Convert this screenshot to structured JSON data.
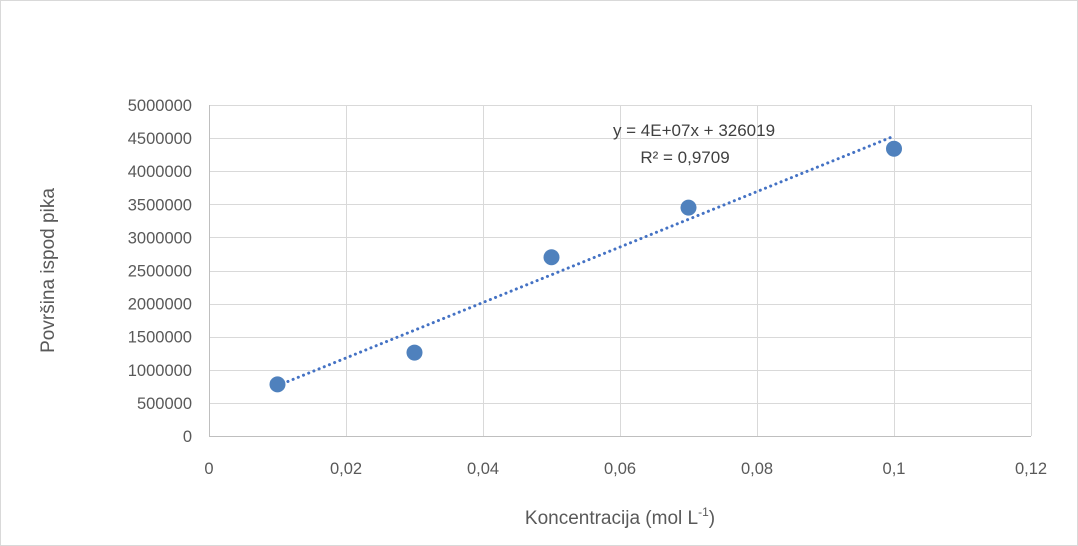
{
  "chart_data": {
    "type": "scatter",
    "title": "",
    "xlabel": "Koncentracija (mol L",
    "xlabel_superscript": "-1",
    "xlabel_suffix": ")",
    "ylabel": "Površina ispod pika",
    "xlim": [
      0,
      0.12
    ],
    "ylim": [
      0,
      5000000
    ],
    "x_ticks": [
      0,
      0.02,
      0.04,
      0.06,
      0.08,
      0.1,
      0.12
    ],
    "x_tick_labels": [
      "0",
      "0,02",
      "0,04",
      "0,06",
      "0,08",
      "0,1",
      "0,12"
    ],
    "y_ticks": [
      0,
      500000,
      1000000,
      1500000,
      2000000,
      2500000,
      3000000,
      3500000,
      4000000,
      4500000,
      5000000
    ],
    "y_tick_labels": [
      "0",
      "500000",
      "1000000",
      "1500000",
      "2000000",
      "2500000",
      "3000000",
      "3500000",
      "4000000",
      "4500000",
      "5000000"
    ],
    "grid": true,
    "legend": "none",
    "series": [
      {
        "color": "#4f81bd",
        "x": [
          0.01,
          0.03,
          0.05,
          0.07,
          0.1
        ],
        "y": [
          780000,
          1260000,
          2700000,
          3450000,
          4340000
        ]
      }
    ],
    "trendline": {
      "type": "linear",
      "style": "dotted",
      "color": "#4472c4",
      "x_range": [
        0.01,
        0.1
      ],
      "y_range": [
        760000,
        4530000
      ],
      "equation": "y = 4E+07x + 326019",
      "r_squared": "R² = 0,9709"
    }
  }
}
